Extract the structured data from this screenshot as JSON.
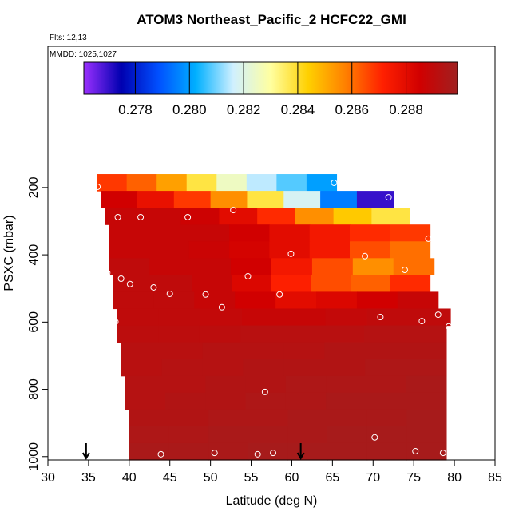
{
  "chart_data": {
    "type": "curtain",
    "title": "ATOM3 Northeast_Pacific_2 HCFC22_GMI",
    "flights": "Flts: 12,13",
    "dates": "MMDD: 1025,1027",
    "x_label": "Latitude (deg N)",
    "y_label": "PSXC (mbar)",
    "xlim": [
      30,
      85
    ],
    "xticks": [
      30,
      35,
      40,
      45,
      50,
      55,
      60,
      65,
      70,
      75,
      80,
      85
    ],
    "ylim": [
      1010,
      -220
    ],
    "yticks": [
      200,
      400,
      600,
      800,
      1000
    ],
    "clim": [
      0.2761,
      0.2899
    ],
    "cticks": [
      0.278,
      {
        "value": 0.28,
        "label": "0.280"
      },
      0.282,
      0.284,
      0.286,
      0.288
    ],
    "colorscale": [
      "#9b30ff",
      "#0000b0",
      "#0050ff",
      "#00b0ff",
      "#d0f0ff",
      "#ffffa0",
      "#ffd000",
      "#ff8000",
      "#ff2000",
      "#d00000",
      "#a02020"
    ],
    "rows": [
      {
        "p": [
          160,
          210
        ],
        "lat": [
          36,
          65.5
        ],
        "values": [
          0.2868,
          0.2862,
          0.2852,
          0.2838,
          0.2825,
          0.2815,
          0.2808,
          0.28
        ]
      },
      {
        "p": [
          210,
          260
        ],
        "lat": [
          36.5,
          72.5
        ],
        "values": [
          0.2885,
          0.2878,
          0.2868,
          0.2855,
          0.2838,
          0.2818,
          0.2795,
          0.277
        ]
      },
      {
        "p": [
          260,
          310
        ],
        "lat": [
          37,
          74.5
        ],
        "values": [
          0.2888,
          0.2888,
          0.2886,
          0.288,
          0.287,
          0.2855,
          0.2845,
          0.2838
        ]
      },
      {
        "p": [
          310,
          360
        ],
        "lat": [
          37.5,
          77
        ],
        "values": [
          0.2888,
          0.2888,
          0.2888,
          0.2885,
          0.288,
          0.2875,
          0.287,
          0.2868
        ]
      },
      {
        "p": [
          360,
          410
        ],
        "lat": [
          37.5,
          77
        ],
        "values": [
          0.2888,
          0.2888,
          0.2887,
          0.2884,
          0.288,
          0.2875,
          0.2865,
          0.286
        ]
      },
      {
        "p": [
          410,
          460
        ],
        "lat": [
          37.5,
          77.5
        ],
        "values": [
          0.289,
          0.2888,
          0.2888,
          0.2885,
          0.2875,
          0.2865,
          0.2855,
          0.286
        ]
      },
      {
        "p": [
          460,
          510
        ],
        "lat": [
          38,
          77
        ],
        "values": [
          0.289,
          0.289,
          0.2888,
          0.2882,
          0.2872,
          0.2865,
          0.2862,
          0.287
        ]
      },
      {
        "p": [
          510,
          560
        ],
        "lat": [
          38,
          78
        ],
        "values": [
          0.289,
          0.289,
          0.2888,
          0.2885,
          0.288,
          0.2882,
          0.2885,
          0.2888
        ]
      },
      {
        "p": [
          560,
          610
        ],
        "lat": [
          38.5,
          79.5
        ],
        "values": [
          0.289,
          0.289,
          0.2889,
          0.2888,
          0.2888,
          0.2889,
          0.289,
          0.289
        ]
      },
      {
        "p": [
          610,
          660
        ],
        "lat": [
          38.5,
          79
        ],
        "values": [
          0.2891,
          0.2891,
          0.2891,
          0.2892,
          0.2892,
          0.2892,
          0.2893,
          0.2893
        ]
      },
      {
        "p": [
          660,
          710
        ],
        "lat": [
          39,
          79
        ],
        "values": [
          0.2892,
          0.2892,
          0.2893,
          0.2893,
          0.2893,
          0.2894,
          0.2894,
          0.2894
        ]
      },
      {
        "p": [
          710,
          760
        ],
        "lat": [
          39,
          79
        ],
        "values": [
          0.2892,
          0.2893,
          0.2893,
          0.2894,
          0.2894,
          0.2894,
          0.2895,
          0.2895
        ]
      },
      {
        "p": [
          760,
          810
        ],
        "lat": [
          39.5,
          79
        ],
        "values": [
          0.2893,
          0.2893,
          0.2894,
          0.2894,
          0.2895,
          0.2895,
          0.2895,
          0.2896
        ]
      },
      {
        "p": [
          810,
          860
        ],
        "lat": [
          39.5,
          79
        ],
        "values": [
          0.2893,
          0.2894,
          0.2894,
          0.2895,
          0.2895,
          0.2896,
          0.2896,
          0.2896
        ]
      },
      {
        "p": [
          860,
          910
        ],
        "lat": [
          40,
          79
        ],
        "values": [
          0.2894,
          0.2894,
          0.2895,
          0.2895,
          0.2896,
          0.2896,
          0.2896,
          0.2897
        ]
      },
      {
        "p": [
          910,
          960
        ],
        "lat": [
          40,
          79
        ],
        "values": [
          0.2895,
          0.2895,
          0.2896,
          0.2896,
          0.2896,
          0.2897,
          0.2897,
          0.2897
        ]
      },
      {
        "p": [
          960,
          1010
        ],
        "lat": [
          40,
          79
        ],
        "values": [
          0.2896,
          0.2896,
          0.2896,
          0.2897,
          0.2897,
          0.2897,
          0.2897,
          0.2897
        ]
      }
    ],
    "points": {
      "lat": [
        36.1,
        65.2,
        71.9,
        52.8,
        38.6,
        41.4,
        47.2,
        76.8,
        59.9,
        69.0,
        73.9,
        37.3,
        39.0,
        40.1,
        43.0,
        45.0,
        49.4,
        54.6,
        58.5,
        51.4,
        38.3,
        70.9,
        76.0,
        78.0,
        79.3,
        56.7,
        39.6,
        39.5,
        70.2,
        39.5,
        43.9,
        50.5,
        55.8,
        57.7,
        75.2,
        78.6
      ],
      "p": [
        198,
        186,
        229,
        267,
        288,
        288,
        288,
        352,
        397,
        404,
        445,
        454,
        471,
        487,
        497,
        516,
        518,
        464,
        518,
        556,
        599,
        585,
        597,
        578,
        613,
        808,
        870,
        946,
        943,
        996,
        993,
        989,
        993,
        989,
        984,
        989
      ]
    },
    "arrows_lat": [
      34.7,
      61.1
    ]
  }
}
